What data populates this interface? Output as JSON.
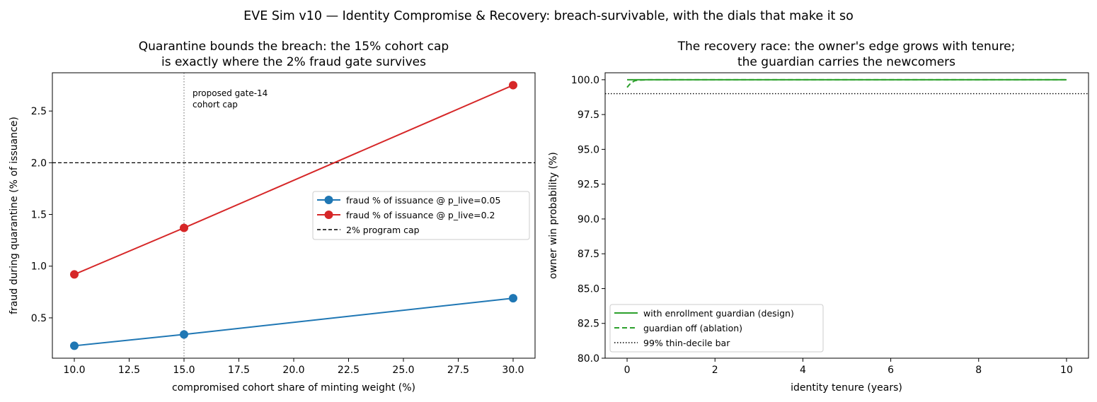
{
  "figure": {
    "suptitle": "EVE Sim v10 — Identity Compromise & Recovery: breach-survivable, with the dials that make it so"
  },
  "colors": {
    "blue": "#1f77b4",
    "red": "#d62728",
    "green": "#2ca02c",
    "black": "#000000",
    "gray": "#808080"
  },
  "chart_data": [
    {
      "type": "line",
      "title_line1": "Quarantine bounds the breach: the 15% cohort cap",
      "title_line2": "is exactly where the 2% fraud gate survives",
      "xlabel": "compromised cohort share of minting weight (%)",
      "ylabel": "fraud during quarantine (% of issuance)",
      "xlim": [
        9.0,
        31.0
      ],
      "ylim": [
        0.11,
        2.87
      ],
      "xticks": [
        10.0,
        12.5,
        15.0,
        17.5,
        20.0,
        22.5,
        25.0,
        27.5,
        30.0
      ],
      "xtick_labels": [
        "10.0",
        "12.5",
        "15.0",
        "17.5",
        "20.0",
        "22.5",
        "25.0",
        "27.5",
        "30.0"
      ],
      "yticks": [
        0.5,
        1.0,
        1.5,
        2.0,
        2.5
      ],
      "ytick_labels": [
        "0.5",
        "1.0",
        "1.5",
        "2.0",
        "2.5"
      ],
      "x": [
        10,
        15,
        30
      ],
      "series": [
        {
          "name": "fraud % of issuance @ p_live=0.05",
          "values": [
            0.23,
            0.34,
            0.69
          ],
          "color": "#1f77b4",
          "marker": "circle"
        },
        {
          "name": "fraud % of issuance @ p_live=0.2",
          "values": [
            0.92,
            1.37,
            2.75
          ],
          "color": "#d62728",
          "marker": "circle"
        }
      ],
      "hline": {
        "name": "2% program cap",
        "y": 2.0,
        "style": "dashed",
        "color": "#000000"
      },
      "vline": {
        "x": 15,
        "style": "dotted",
        "color": "#808080"
      },
      "annotation": {
        "line1": "proposed gate-14",
        "line2": "cohort cap",
        "x": 15,
        "y": 2.72
      },
      "legend": "center-right",
      "grid": false
    },
    {
      "type": "line",
      "title_line1": "The recovery race: the owner's edge grows with tenure;",
      "title_line2": "the guardian carries the newcomers",
      "xlabel": "identity tenure (years)",
      "ylabel": "owner win probability (%)",
      "xlim": [
        -0.5,
        10.5
      ],
      "ylim": [
        80.0,
        100.5
      ],
      "xticks": [
        0,
        2,
        4,
        6,
        8,
        10
      ],
      "xtick_labels": [
        "0",
        "2",
        "4",
        "6",
        "8",
        "10"
      ],
      "yticks": [
        80.0,
        82.5,
        85.0,
        87.5,
        90.0,
        92.5,
        95.0,
        97.5,
        100.0
      ],
      "ytick_labels": [
        "80.0",
        "82.5",
        "85.0",
        "87.5",
        "90.0",
        "92.5",
        "95.0",
        "97.5",
        "100.0"
      ],
      "series": [
        {
          "name": "with enrollment guardian (design)",
          "x": [
            0,
            0.25,
            0.5,
            1,
            2,
            4,
            6,
            8,
            10
          ],
          "values": [
            100.0,
            100.0,
            100.0,
            100.0,
            100.0,
            100.0,
            100.0,
            100.0,
            100.0
          ],
          "color": "#2ca02c",
          "style": "solid"
        },
        {
          "name": "guardian off (ablation)",
          "x": [
            0,
            0.08,
            0.17,
            0.25,
            0.5,
            1,
            2,
            4,
            6,
            8,
            10
          ],
          "values": [
            99.45,
            99.75,
            99.92,
            99.97,
            100.0,
            100.0,
            100.0,
            100.0,
            100.0,
            100.0,
            100.0
          ],
          "color": "#2ca02c",
          "style": "dashed"
        }
      ],
      "hline": {
        "name": "99% thin-decile bar",
        "y": 99.0,
        "style": "dotted",
        "color": "#000000"
      },
      "legend": "lower-left",
      "grid": false
    }
  ]
}
